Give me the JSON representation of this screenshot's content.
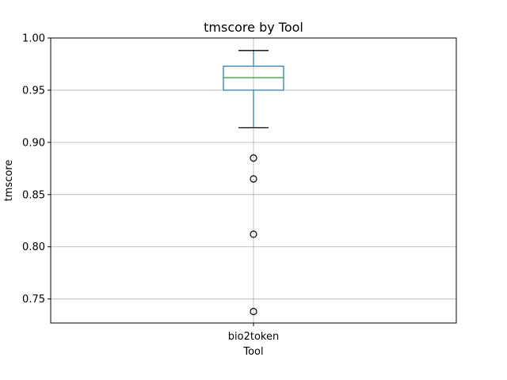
{
  "chart_data": {
    "type": "box",
    "title": "tmscore by Tool",
    "xlabel": "Tool",
    "ylabel": "tmscore",
    "categories": [
      "bio2token"
    ],
    "ylim": [
      0.727,
      1.0
    ],
    "yticks": [
      "0.75",
      "0.80",
      "0.85",
      "0.90",
      "0.95",
      "1.00"
    ],
    "grid": true,
    "boxes": [
      {
        "name": "bio2token",
        "whisker_low": 0.914,
        "q1": 0.95,
        "median": 0.962,
        "q3": 0.973,
        "whisker_high": 0.988,
        "outliers": [
          0.885,
          0.865,
          0.812,
          0.738
        ]
      }
    ],
    "colors": {
      "box": "#1f77b4",
      "median": "#2ca02c",
      "whisker_cap": "#000000",
      "grid": "#b0b0b0"
    }
  }
}
